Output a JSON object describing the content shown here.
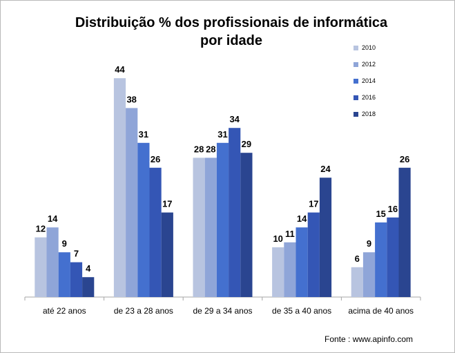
{
  "chart_data": {
    "type": "bar",
    "title": "Distribuição % dos profissionais de informática por idade",
    "title_lines": [
      "Distribuição % dos profissionais de informática",
      "por idade"
    ],
    "categories": [
      "até 22 anos",
      "de 23 a 28 anos",
      "de 29 a 34 anos",
      "de 35 a 40 anos",
      "acima de 40 anos"
    ],
    "series": [
      {
        "name": "2010",
        "color": "#b8c4e0",
        "values": [
          12,
          44,
          28,
          10,
          6
        ]
      },
      {
        "name": "2012",
        "color": "#8fa5d8",
        "values": [
          14,
          38,
          28,
          11,
          9
        ]
      },
      {
        "name": "2014",
        "color": "#4470cf",
        "values": [
          9,
          31,
          31,
          14,
          15
        ]
      },
      {
        "name": "2016",
        "color": "#3456b5",
        "values": [
          7,
          26,
          34,
          17,
          16
        ]
      },
      {
        "name": "2018",
        "color": "#2a4590",
        "values": [
          4,
          17,
          29,
          24,
          26
        ]
      }
    ],
    "ylim": [
      0,
      50
    ],
    "y_axis_visible": false,
    "data_labels": true,
    "grid": false,
    "legend_position": "top-right",
    "xlabel": "",
    "ylabel": ""
  },
  "source": "Fonte : www.apinfo.com"
}
